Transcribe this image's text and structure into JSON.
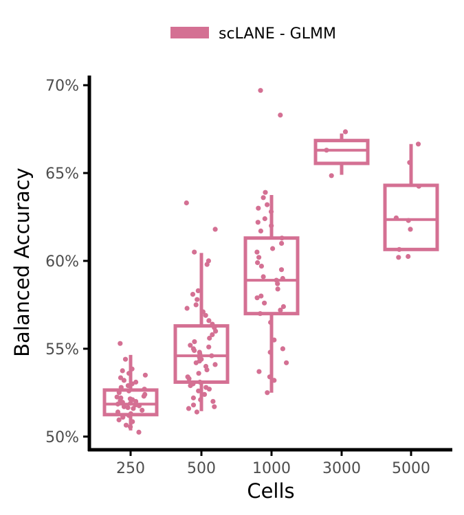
{
  "chart_data": {
    "type": "boxplot",
    "xlabel": "Cells",
    "ylabel": "Balanced Accuracy",
    "categories": [
      "250",
      "500",
      "1000",
      "3000",
      "5000"
    ],
    "y_ticks": [
      0.5,
      0.55,
      0.6,
      0.65,
      0.7
    ],
    "y_tick_labels": [
      "50%",
      "55%",
      "60%",
      "65%",
      "70%"
    ],
    "ylim": [
      0.4925,
      0.7055
    ],
    "legend": {
      "position": "top",
      "entries": [
        {
          "label": "scLANE - GLMM",
          "color": "#d47093"
        }
      ]
    },
    "grid": false,
    "series": [
      {
        "name": "scLANE - GLMM",
        "color": "#d47093",
        "boxes": [
          {
            "category": "250",
            "whisker_low": 0.5035,
            "q1": 0.5125,
            "median": 0.5185,
            "q3": 0.5265,
            "whisker_high": 0.5465
          },
          {
            "category": "500",
            "whisker_low": 0.5145,
            "q1": 0.531,
            "median": 0.546,
            "q3": 0.563,
            "whisker_high": 0.6045
          },
          {
            "category": "1000",
            "whisker_low": 0.525,
            "q1": 0.57,
            "median": 0.589,
            "q3": 0.613,
            "whisker_high": 0.6375
          },
          {
            "category": "3000",
            "whisker_low": 0.649,
            "q1": 0.6555,
            "median": 0.663,
            "q3": 0.6685,
            "whisker_high": 0.6725
          },
          {
            "category": "5000",
            "whisker_low": 0.606,
            "q1": 0.6065,
            "median": 0.6235,
            "q3": 0.643,
            "whisker_high": 0.6665
          }
        ],
        "points": [
          {
            "category": "250",
            "values": [
              0.5055,
              0.5085,
              0.5095,
              0.511,
              0.512,
              0.513,
              0.514,
              0.515,
              0.516,
              0.5165,
              0.517,
              0.5175,
              0.518,
              0.5185,
              0.519,
              0.5195,
              0.52,
              0.5205,
              0.521,
              0.5215,
              0.522,
              0.5225,
              0.523,
              0.524,
              0.525,
              0.526,
              0.527,
              0.528,
              0.529,
              0.53,
              0.531,
              0.532,
              0.5335,
              0.535,
              0.536,
              0.5375,
              0.5385,
              0.544,
              0.553,
              0.5025,
              0.5065
            ]
          },
          {
            "category": "500",
            "values": [
              0.514,
              0.516,
              0.517,
              0.518,
              0.52,
              0.521,
              0.522,
              0.524,
              0.526,
              0.527,
              0.528,
              0.529,
              0.53,
              0.531,
              0.533,
              0.534,
              0.536,
              0.538,
              0.54,
              0.541,
              0.542,
              0.543,
              0.544,
              0.545,
              0.546,
              0.547,
              0.548,
              0.549,
              0.55,
              0.551,
              0.552,
              0.554,
              0.556,
              0.558,
              0.56,
              0.562,
              0.564,
              0.566,
              0.569,
              0.571,
              0.573,
              0.575,
              0.578,
              0.581,
              0.583,
              0.598,
              0.6,
              0.605,
              0.618,
              0.633
            ]
          },
          {
            "category": "1000",
            "values": [
              0.525,
              0.532,
              0.534,
              0.537,
              0.542,
              0.548,
              0.55,
              0.555,
              0.565,
              0.57,
              0.572,
              0.574,
              0.576,
              0.579,
              0.58,
              0.584,
              0.587,
              0.589,
              0.59,
              0.591,
              0.595,
              0.597,
              0.599,
              0.602,
              0.605,
              0.607,
              0.61,
              0.613,
              0.617,
              0.62,
              0.622,
              0.624,
              0.628,
              0.63,
              0.632,
              0.636,
              0.639,
              0.683,
              0.697
            ]
          },
          {
            "category": "3000",
            "values": [
              0.6485,
              0.663,
              0.6735
            ]
          },
          {
            "category": "5000",
            "values": [
              0.602,
              0.6025,
              0.6065,
              0.618,
              0.623,
              0.6245,
              0.6425,
              0.656,
              0.6665
            ]
          }
        ]
      }
    ]
  }
}
